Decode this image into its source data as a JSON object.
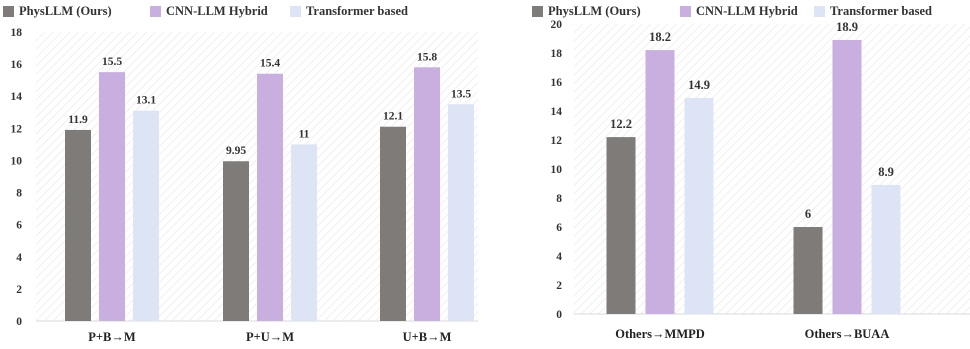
{
  "colors": {
    "PhysLLM (Ours)": "#7f7b79",
    "CNN-LLM Hybrid": "#c9aee0",
    "Transformer based": "#dde4f5"
  },
  "chart_data": [
    {
      "type": "bar",
      "categories": [
        "P+B→M",
        "P+U→M",
        "U+B→M"
      ],
      "series": [
        {
          "name": "PhysLLM (Ours)",
          "values": [
            11.9,
            9.95,
            12.1
          ]
        },
        {
          "name": "CNN-LLM Hybrid",
          "values": [
            15.5,
            15.4,
            15.8
          ]
        },
        {
          "name": "Transformer based",
          "values": [
            13.1,
            11,
            13.5
          ]
        }
      ],
      "ylim": [
        0,
        18
      ],
      "yticks": [
        0,
        2,
        4,
        6,
        8,
        10,
        12,
        14,
        16,
        18
      ],
      "grid": "hatched background",
      "legend": "top-left"
    },
    {
      "type": "bar",
      "categories": [
        "Others→MMPD",
        "Others→BUAA"
      ],
      "series": [
        {
          "name": "PhysLLM (Ours)",
          "values": [
            12.2,
            6
          ]
        },
        {
          "name": "CNN-LLM Hybrid",
          "values": [
            18.2,
            18.9
          ]
        },
        {
          "name": "Transformer based",
          "values": [
            14.9,
            8.9
          ]
        }
      ],
      "ylim": [
        0,
        20
      ],
      "yticks": [
        0,
        2,
        4,
        6,
        8,
        10,
        12,
        14,
        16,
        18,
        20
      ],
      "grid": "hatched background",
      "legend": "top-left"
    }
  ]
}
